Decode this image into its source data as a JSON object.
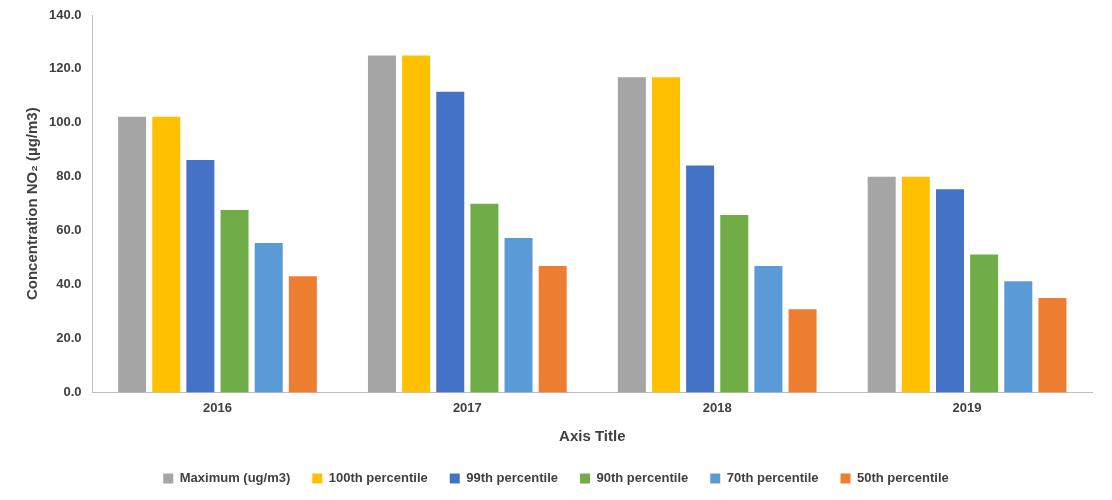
{
  "chart_data": {
    "type": "bar",
    "xlabel": "Axis Title",
    "ylabel": "Concentration NO₂ (µg/m3)",
    "categories": [
      "2016",
      "2017",
      "2018",
      "2019"
    ],
    "series": [
      {
        "name": "Maximum (ug/m3)",
        "color": "#a5a5a5",
        "values": [
          102.3,
          125,
          116.9,
          80
        ]
      },
      {
        "name": "100th percentile",
        "color": "#ffc000",
        "values": [
          102.3,
          125,
          116.9,
          80
        ]
      },
      {
        "name": "99th percentile",
        "color": "#4472c4",
        "values": [
          86.2,
          111.5,
          84.2,
          75.4
        ]
      },
      {
        "name": "90th percentile",
        "color": "#70ad47",
        "values": [
          67.7,
          70,
          65.8,
          51.2
        ]
      },
      {
        "name": "70th percentile",
        "color": "#5b9bd5",
        "values": [
          55.4,
          57.3,
          46.9,
          41.2
        ]
      },
      {
        "name": "50th percentile",
        "color": "#ed7d31",
        "values": [
          43.1,
          46.9,
          30.8,
          35
        ]
      }
    ],
    "ylim": [
      0,
      140
    ],
    "yticks": [
      {
        "value": 0,
        "label": "0.0"
      },
      {
        "value": 20,
        "label": "20.0"
      },
      {
        "value": 40,
        "label": "40.0"
      },
      {
        "value": 60,
        "label": "60.0"
      },
      {
        "value": 80,
        "label": "80.0"
      },
      {
        "value": 100,
        "label": "100.0"
      },
      {
        "value": 120,
        "label": "120.0"
      },
      {
        "value": 140,
        "label": "140.0"
      }
    ],
    "grid": false,
    "legend": "bottom"
  }
}
